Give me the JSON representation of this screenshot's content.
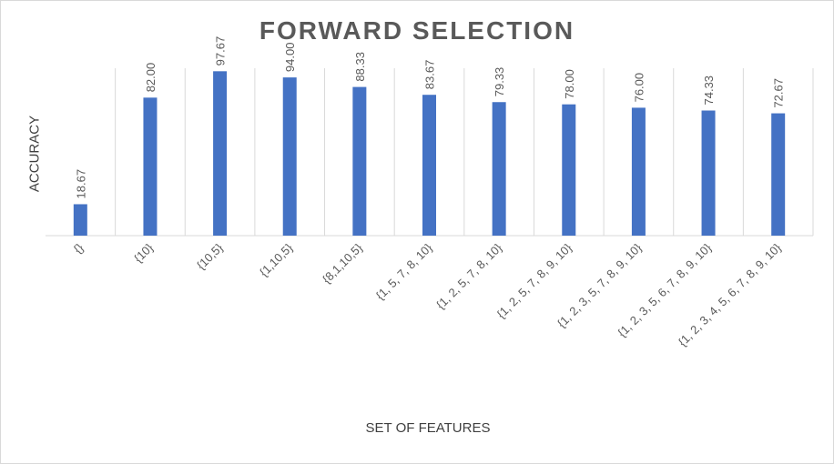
{
  "chart_data": {
    "type": "bar",
    "title": "FORWARD SELECTION",
    "xlabel": "SET OF FEATURES",
    "ylabel": "ACCURACY",
    "categories": [
      "{}",
      "{10}",
      "{10,5}",
      "{1,10,5}",
      "{8,1,10,5}",
      "{1, 5, 7, 8, 10}",
      "{1, 2, 5, 7, 8, 10}",
      "{1, 2, 5, 7, 8, 9, 10}",
      "{1, 2, 3, 5, 7, 8, 9, 10}",
      "{1, 2, 3, 5, 6, 7, 8, 9, 10}",
      "{1, 2, 3, 4, 5, 6, 7, 8, 9, 10}"
    ],
    "values": [
      18.67,
      82.0,
      97.67,
      94.0,
      88.33,
      83.67,
      79.33,
      78.0,
      76.0,
      74.33,
      72.67
    ],
    "data_labels": [
      "18.67",
      "82.00",
      "97.67",
      "94.00",
      "88.33",
      "83.67",
      "79.33",
      "78.00",
      "76.00",
      "74.33",
      "72.67"
    ],
    "ylim": [
      0,
      100
    ],
    "bar_color": "#4472c4",
    "grid": "vertical category separators"
  }
}
